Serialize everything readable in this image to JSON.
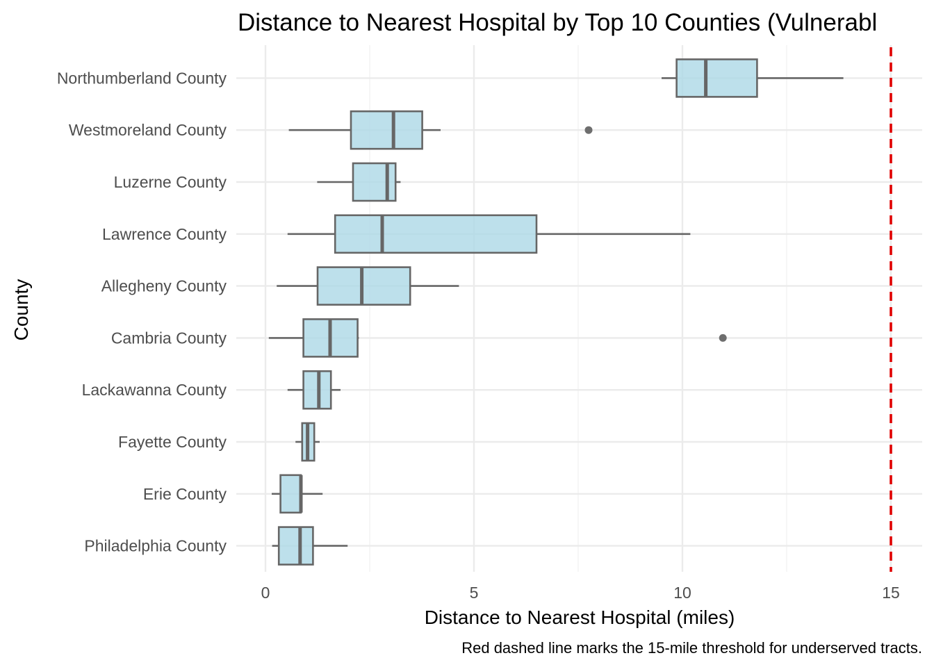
{
  "chart_data": {
    "type": "boxplot",
    "orientation": "horizontal",
    "title": "Distance to Nearest Hospital by Top 10 Counties (Vulnerabl",
    "xlabel": "Distance to Nearest Hospital (miles)",
    "ylabel": "County",
    "caption": "Red dashed line marks the 15-mile threshold for underserved tracts.",
    "xlim": [
      -0.7,
      15.75
    ],
    "xticks": [
      0,
      5,
      10,
      15
    ],
    "xtick_labels": [
      "0",
      "5",
      "10",
      "15"
    ],
    "grid": true,
    "reference_line": {
      "x": 15,
      "color": "#e00000",
      "style": "dashed"
    },
    "box_fill": "#add8e6",
    "box_stroke": "#666666",
    "categories": [
      "Northumberland County",
      "Westmoreland County",
      "Luzerne County",
      "Lawrence County",
      "Allegheny County",
      "Cambria County",
      "Lackawanna County",
      "Fayette County",
      "Erie County",
      "Philadelphia County"
    ],
    "boxes": [
      {
        "county": "Northumberland County",
        "whisker_low": 9.5,
        "q1": 9.86,
        "median": 10.56,
        "q3": 11.79,
        "whisker_high": 13.86,
        "outliers": []
      },
      {
        "county": "Westmoreland County",
        "whisker_low": 0.56,
        "q1": 2.05,
        "median": 3.07,
        "q3": 3.76,
        "whisker_high": 4.2,
        "outliers": [
          7.75
        ]
      },
      {
        "county": "Luzerne County",
        "whisker_low": 1.24,
        "q1": 2.1,
        "median": 2.92,
        "q3": 3.12,
        "whisker_high": 3.24,
        "outliers": []
      },
      {
        "county": "Lawrence County",
        "whisker_low": 0.53,
        "q1": 1.67,
        "median": 2.8,
        "q3": 6.5,
        "whisker_high": 10.19,
        "outliers": []
      },
      {
        "county": "Allegheny County",
        "whisker_low": 0.27,
        "q1": 1.25,
        "median": 2.31,
        "q3": 3.47,
        "whisker_high": 4.64,
        "outliers": []
      },
      {
        "county": "Cambria County",
        "whisker_low": 0.08,
        "q1": 0.91,
        "median": 1.55,
        "q3": 2.21,
        "whisker_high": 2.24,
        "outliers": [
          10.97
        ]
      },
      {
        "county": "Lackawanna County",
        "whisker_low": 0.53,
        "q1": 0.91,
        "median": 1.28,
        "q3": 1.57,
        "whisker_high": 1.8,
        "outliers": []
      },
      {
        "county": "Fayette County",
        "whisker_low": 0.72,
        "q1": 0.88,
        "median": 1.01,
        "q3": 1.17,
        "whisker_high": 1.3,
        "outliers": []
      },
      {
        "county": "Erie County",
        "whisker_low": 0.15,
        "q1": 0.36,
        "median": 0.85,
        "q3": 0.85,
        "whisker_high": 1.37,
        "outliers": []
      },
      {
        "county": "Philadelphia County",
        "whisker_low": 0.16,
        "q1": 0.32,
        "median": 0.83,
        "q3": 1.14,
        "whisker_high": 1.97,
        "outliers": []
      }
    ]
  }
}
